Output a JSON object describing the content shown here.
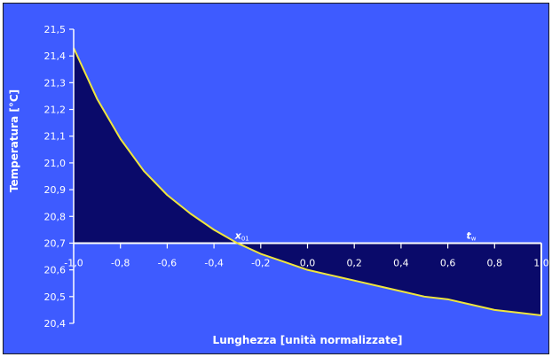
{
  "chart_data": {
    "type": "area",
    "title": "",
    "xlabel": "Lunghezza [unità normalizzate]",
    "ylabel": "Temperatura [°C]",
    "xlim": [
      -1.0,
      1.0
    ],
    "ylim": [
      20.4,
      21.5
    ],
    "baseline": 20.7,
    "x_ticks": [
      -1.0,
      -0.8,
      -0.6,
      -0.4,
      -0.2,
      0.0,
      0.2,
      0.4,
      0.6,
      0.8,
      1.0
    ],
    "x_tick_labels": [
      "-1,0",
      "-0,8",
      "-0,6",
      "-0,4",
      "-0,2",
      "0,0",
      "0,2",
      "0,4",
      "0,6",
      "0,8",
      "1,0"
    ],
    "y_ticks": [
      20.4,
      20.5,
      20.6,
      20.7,
      20.8,
      20.9,
      21.0,
      21.1,
      21.2,
      21.3,
      21.4,
      21.5
    ],
    "y_tick_labels": [
      "20,4",
      "20,5",
      "20,6",
      "20,7",
      "20,8",
      "20,9",
      "21,0",
      "21,1",
      "21,2",
      "21,3",
      "21,4",
      "21,5"
    ],
    "grid": false,
    "legend": "none",
    "series": [
      {
        "x": [
          -1.0,
          -0.9,
          -0.8,
          -0.7,
          -0.6,
          -0.5,
          -0.4,
          -0.3,
          -0.2,
          -0.1,
          0.0,
          0.1,
          0.2,
          0.3,
          0.4,
          0.5,
          0.6,
          0.7,
          0.8,
          0.9,
          1.0
        ],
        "y": [
          21.43,
          21.24,
          21.09,
          20.97,
          20.88,
          20.81,
          20.75,
          20.7,
          20.66,
          20.63,
          20.6,
          20.58,
          20.56,
          20.54,
          20.52,
          20.5,
          20.49,
          20.47,
          20.45,
          20.44,
          20.43
        ]
      }
    ],
    "annotations": [
      {
        "text": "x",
        "sub": "01",
        "x": -0.28,
        "y": 20.7
      },
      {
        "text": "t",
        "sub": "w",
        "x": 0.7,
        "y": 20.7
      }
    ],
    "colors": {
      "background": "#3e5bff",
      "fill": "#0a0a6a",
      "line": "#f0e63c",
      "axis": "#ffffff",
      "text": "#ffffff"
    }
  }
}
